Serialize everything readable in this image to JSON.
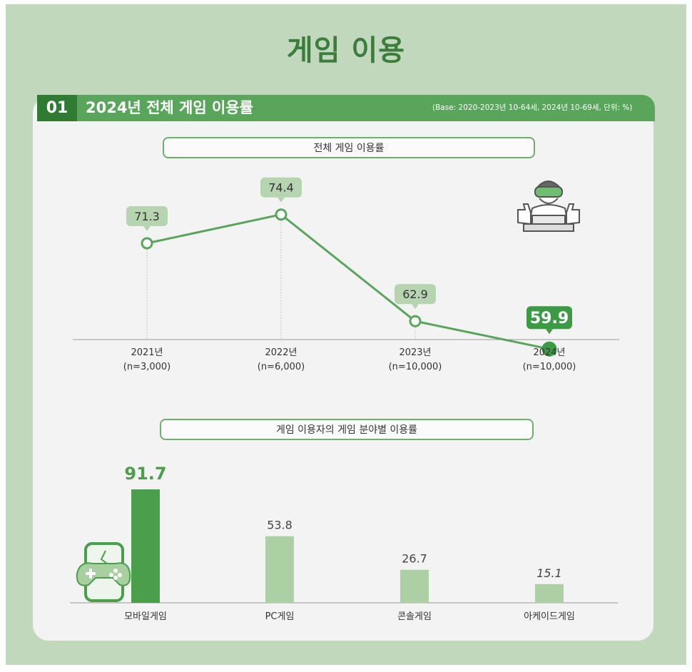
{
  "title": "게임 이용",
  "section": {
    "number": "01",
    "title": "2024년 전체 게임 이용률",
    "base_note": "(Base: 2020-2023년 10-64세, 2024년 10-69세, 단위: %)"
  },
  "colors": {
    "background": "#c2d8bd",
    "accent": "#3a7d3c",
    "header_bar": "#5aa55c",
    "line": "#5aa55c",
    "highlight_bar": "#4a9e4c",
    "light_bar": "#acd0a4",
    "label_bubble": "#b7d4b1",
    "highlight_bubble": "#3c9a45"
  },
  "chart_data": [
    {
      "type": "line",
      "title": "전체 게임 이용률",
      "categories": [
        {
          "year": "2021년",
          "n": "(n=3,000)"
        },
        {
          "year": "2022년",
          "n": "(n=6,000)"
        },
        {
          "year": "2023년",
          "n": "(n=10,000)"
        },
        {
          "year": "2024년",
          "n": "(n=10,000)"
        }
      ],
      "values": [
        71.3,
        74.4,
        62.9,
        59.9
      ],
      "value_labels": [
        "71.3",
        "74.4",
        "62.9",
        "59.9"
      ],
      "highlight_index": 3,
      "unit": "%",
      "ylim": [
        0,
        100
      ],
      "grid": false
    },
    {
      "type": "bar",
      "title": "게임 이용자의 게임 분야별 이용률",
      "categories": [
        "모바일게임",
        "PC게임",
        "콘솔게임",
        "아케이드게임"
      ],
      "values": [
        91.7,
        53.8,
        26.7,
        15.1
      ],
      "value_labels": [
        "91.7",
        "53.8",
        "26.7",
        "15.1"
      ],
      "highlight_index": 0,
      "unit": "%",
      "ylim": [
        0,
        100
      ],
      "grid": false
    }
  ],
  "icons": {
    "line_chart_icon": "gamer-with-vr-headset-icon",
    "bar_chart_icon": "mobile-gamepad-icon"
  }
}
